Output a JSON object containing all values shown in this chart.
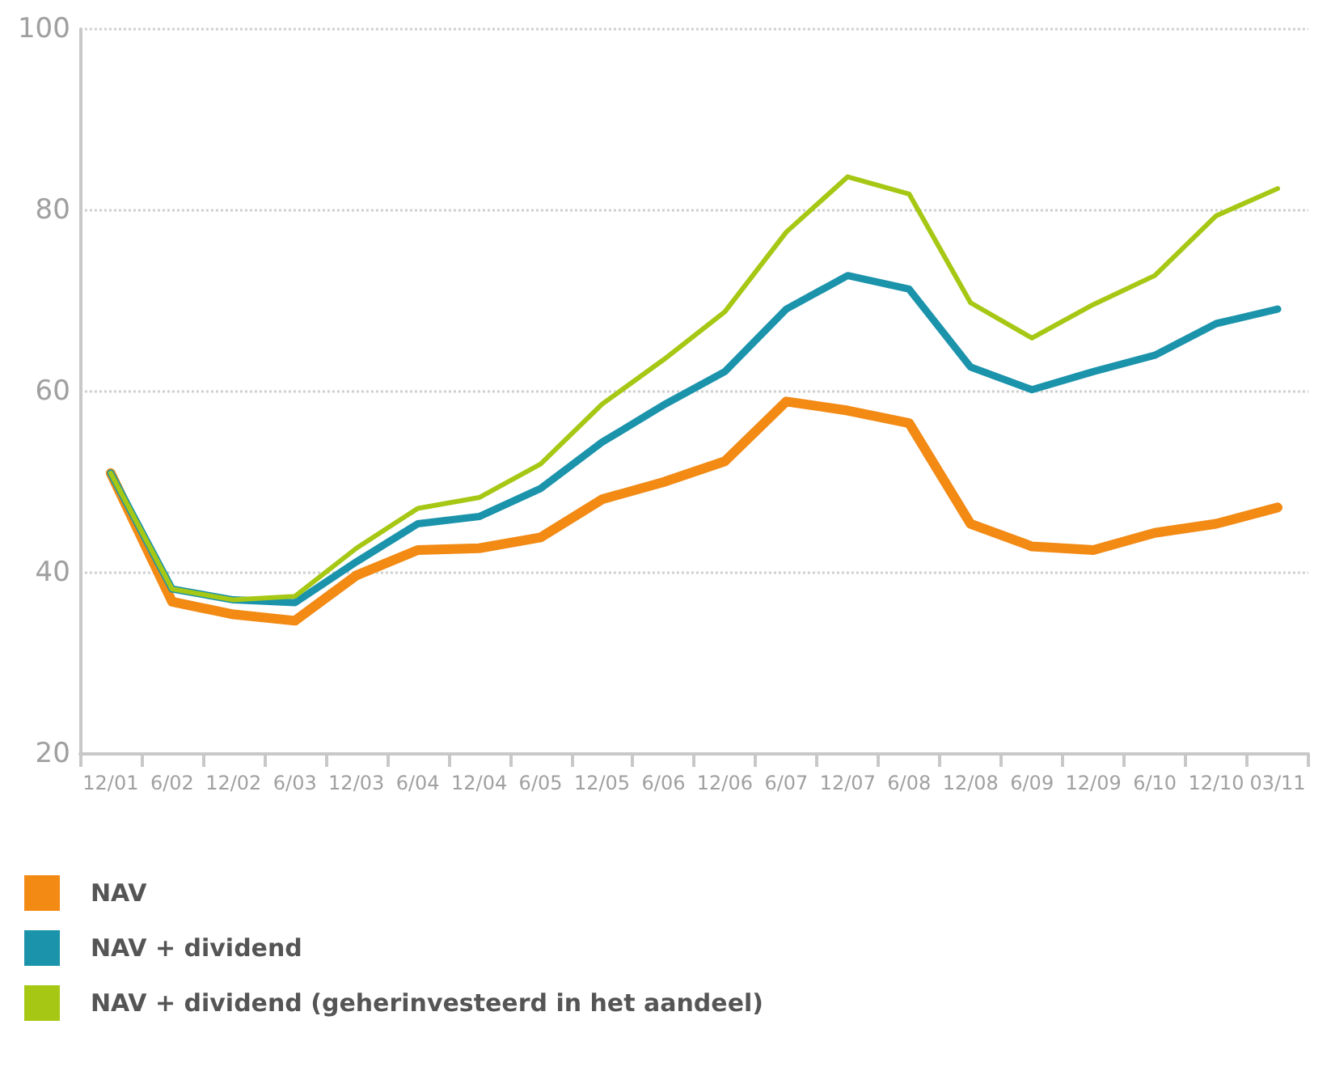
{
  "chart_data": {
    "type": "line",
    "categories": [
      "12/01",
      "6/02",
      "12/02",
      "6/03",
      "12/03",
      "6/04",
      "12/04",
      "6/05",
      "12/05",
      "6/06",
      "12/06",
      "6/07",
      "12/07",
      "6/08",
      "12/08",
      "6/09",
      "12/09",
      "6/10",
      "12/10",
      "03/11"
    ],
    "series": [
      {
        "name": "NAV",
        "color": "#f28a14",
        "values": [
          51,
          36.8,
          35.4,
          34.7,
          39.7,
          42.5,
          42.7,
          43.9,
          48.1,
          50,
          52.3,
          58.9,
          57.9,
          56.5,
          45.4,
          42.9,
          42.5,
          44.4,
          45.4,
          47.2
        ]
      },
      {
        "name": "NAV + dividend",
        "color": "#1a93ab",
        "values": [
          51,
          38.2,
          37,
          36.7,
          41.2,
          45.4,
          46.2,
          49.3,
          54.4,
          58.5,
          62.2,
          69.1,
          72.8,
          71.3,
          62.7,
          60.2,
          62.2,
          64,
          67.5,
          69.1
        ]
      },
      {
        "name": "NAV + dividend (geherinvesteerd in het aandeel)",
        "color": "#a6c814",
        "values": [
          51,
          38.2,
          37,
          37.4,
          42.7,
          47.1,
          48.3,
          52,
          58.6,
          63.5,
          68.8,
          77.6,
          83.7,
          81.8,
          69.8,
          65.9,
          69.6,
          72.8,
          79.4,
          82.4
        ]
      }
    ],
    "ylim": [
      20,
      100
    ],
    "yticks": [
      20,
      40,
      60,
      80,
      100
    ],
    "grid": "y",
    "legend": "bottom",
    "marker": "none",
    "line_style": "solid"
  }
}
